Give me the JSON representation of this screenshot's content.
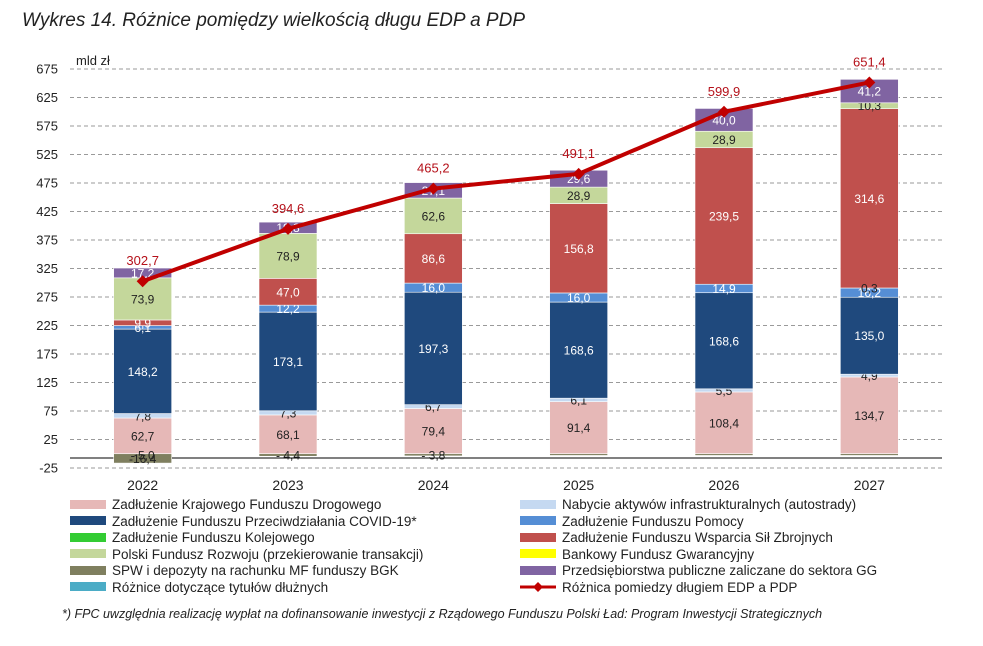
{
  "title": "Wykres 14. Różnice pomiędzy wielkością długu EDP a PDP",
  "footnote": "*) FPC uwzględnia realizację wypłat na dofinansowanie inwestycji z Rządowego Funduszu Polski Ład: Program Inwestycji Strategicznych",
  "chart_data": {
    "type": "bar",
    "stacked": true,
    "unit_label": "mld zł",
    "categories": [
      "2022",
      "2023",
      "2024",
      "2025",
      "2026",
      "2027"
    ],
    "ylim": [
      -25,
      675
    ],
    "yticks": [
      -25,
      25,
      75,
      125,
      175,
      225,
      275,
      325,
      375,
      425,
      475,
      525,
      575,
      625,
      675
    ],
    "grid": true,
    "series": [
      {
        "name": "Zadłużenie Krajowego Funduszu Drogowego",
        "color": "#e6b8b7",
        "values": [
          62.7,
          68.1,
          79.4,
          91.4,
          108.4,
          134.7
        ],
        "labels": [
          "62,7",
          "68,1",
          "79,4",
          "91,4",
          "108,4",
          "134,7"
        ],
        "label_color": "#222222"
      },
      {
        "name": "Nabycie aktywów infrastrukturalnych (autostrady)",
        "color": "#c5d9f1",
        "values": [
          7.8,
          7.3,
          6.7,
          6.1,
          5.5,
          4.9
        ],
        "labels": [
          "7,8",
          "7,3",
          "6,7",
          "6,1",
          "5,5",
          "4,9"
        ],
        "label_color": "#222222"
      },
      {
        "name": "Zadłużenie Funduszu Przeciwdziałania COVID-19*",
        "color": "#1f497d",
        "values": [
          148.2,
          173.1,
          197.3,
          168.6,
          168.6,
          135.0
        ],
        "labels": [
          "148,2",
          "173,1",
          "197,3",
          "168,6",
          "168,6",
          "135,0"
        ],
        "label_color": "#ffffff"
      },
      {
        "name": "Zadłużenie Funduszu Pomocy",
        "color": "#558ed5",
        "values": [
          6.1,
          12.2,
          16.0,
          16.0,
          14.9,
          16.2
        ],
        "labels": [
          "6,1",
          "12,2",
          "16,0",
          "16,0",
          "14,9",
          "16,2"
        ],
        "label_color": "#ffffff"
      },
      {
        "name": "Zadłużenie Funduszu Kolejowego",
        "color": "#33cc33",
        "values": [
          0,
          0,
          0,
          0,
          0,
          0
        ],
        "labels": [
          "",
          "",
          "",
          "",
          "",
          ""
        ],
        "label_color": "#222222"
      },
      {
        "name": "Zadłużenie Funduszu Wsparcia Sił Zbrojnych",
        "color": "#c0504d",
        "values": [
          9.9,
          47.0,
          86.6,
          156.8,
          239.5,
          314.6
        ],
        "labels": [
          "9,9",
          "47,0",
          "86,6",
          "156,8",
          "239,5",
          "314,6"
        ],
        "label_color": "#ffffff"
      },
      {
        "name": "Polski Fundusz Rozwoju (przekierowanie transakcji)",
        "color": "#c4d79b",
        "values": [
          73.9,
          78.9,
          62.6,
          28.9,
          28.9,
          10.3
        ],
        "labels": [
          "73,9",
          "78,9",
          "62,6",
          "28,9",
          "28,9",
          "10,3"
        ],
        "label_color": "#222222"
      },
      {
        "name": "Bankowy Fundusz Gwarancyjny",
        "color": "#ffff00",
        "values": [
          0,
          0,
          0,
          0,
          0,
          0
        ],
        "labels": [
          "",
          "",
          "",
          "",
          "",
          ""
        ],
        "label_color": "#222222"
      },
      {
        "name": "SPW i depozyty na rachunku MF funduszy BGK",
        "color": "#7f7f5f",
        "values": [
          -16.4,
          -4.4,
          -3.8,
          -3.0,
          -3.0,
          -3.0
        ],
        "labels": [
          "-16,4",
          "- 4,4",
          "- 3,8",
          "",
          "",
          ""
        ],
        "label_color": "#222222"
      },
      {
        "name": "Przedsiębiorstwa publiczne zaliczane do sektora GG",
        "color": "#8064a2",
        "values": [
          17.2,
          19.8,
          27.1,
          29.6,
          40.0,
          41.2
        ],
        "labels": [
          "17,2",
          "19,8",
          "27,1",
          "29,6",
          "40,0",
          "41,2"
        ],
        "label_color": "#ffffff"
      },
      {
        "name": "Różnice dotyczące tytułów dłużnych",
        "color": "#4bacc6",
        "values": [
          0,
          0,
          0,
          0,
          0,
          0
        ],
        "labels": [
          "",
          "",
          "",
          "",
          "",
          ""
        ],
        "label_color": "#222222"
      },
      {
        "name": "Różnica pomiedzy długiem EDP a PDP",
        "color": "#c00000",
        "type": "line",
        "values": [
          302.7,
          394.6,
          465.2,
          491.1,
          599.9,
          651.4
        ],
        "labels": [
          "302,7",
          "394,6",
          "465,2",
          "491,1",
          "599,9",
          "651,4"
        ]
      }
    ],
    "extra_labels": [
      {
        "category": "2022",
        "text": "- 5,0",
        "value": -5.0
      },
      {
        "category": "2027",
        "text": "0,3",
        "value": 0.3
      }
    ],
    "legend": [
      "Zadłużenie Krajowego Funduszu Drogowego",
      "Nabycie aktywów infrastrukturalnych (autostrady)",
      "Zadłużenie Funduszu Przeciwdziałania COVID-19*",
      "Zadłużenie Funduszu Pomocy",
      "Zadłużenie Funduszu Kolejowego",
      "Zadłużenie Funduszu Wsparcia Sił Zbrojnych",
      "Polski Fundusz Rozwoju (przekierowanie transakcji)",
      "Bankowy Fundusz Gwarancyjny",
      "SPW i depozyty na rachunku MF funduszy BGK",
      "Przedsiębiorstwa publiczne zaliczane do sektora GG",
      "Różnice dotyczące tytułów dłużnych",
      "Różnica pomiedzy długiem EDP a PDP"
    ],
    "legend_placement": "bottom"
  }
}
